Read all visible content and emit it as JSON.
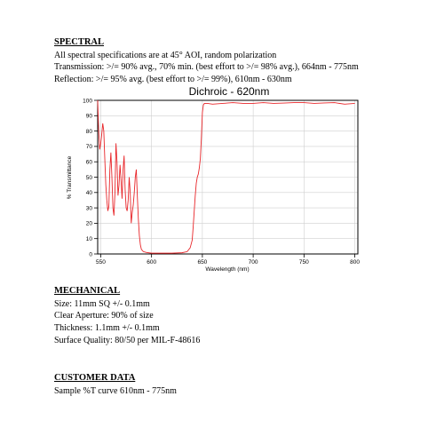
{
  "spectral": {
    "heading": "SPECTRAL",
    "lines": [
      "All spectral specifications are at 45° AOI, random polarization",
      "Transmission:  >/= 90% avg., 70% min. (best effort to >/= 98% avg.), 664nm - 775nm",
      "Reflection:  >/= 95% avg. (best effort to >/= 99%), 610nm - 630nm"
    ]
  },
  "chart_data": {
    "type": "line",
    "title": "Dichroic - 620nm",
    "xlabel": "Wavelength (nm)",
    "ylabel": "% Transmittance",
    "xlim": [
      547,
      803
    ],
    "ylim": [
      0,
      100
    ],
    "x_ticks": [
      550,
      600,
      650,
      700,
      750,
      800
    ],
    "y_ticks": [
      0,
      10,
      20,
      30,
      40,
      50,
      60,
      70,
      80,
      90,
      100
    ],
    "grid": true,
    "line_color": "#e8262a",
    "series": [
      {
        "x": [
          547,
          548,
          549,
          550,
          551,
          552,
          553,
          554,
          555,
          556,
          557,
          558,
          559,
          560,
          561,
          562,
          563,
          564,
          565,
          566,
          567,
          568,
          569,
          570,
          571,
          572,
          573,
          574,
          575,
          576,
          577,
          578,
          579,
          580,
          581,
          582,
          583,
          584,
          585,
          586,
          587,
          588,
          589,
          590,
          592,
          595,
          600,
          610,
          620,
          630,
          635,
          638,
          640,
          641,
          642,
          643,
          644,
          645,
          646,
          647,
          648,
          649,
          650,
          651,
          652,
          655,
          660,
          670,
          680,
          690,
          700,
          710,
          720,
          730,
          740,
          750,
          760,
          770,
          780,
          790,
          800
        ],
        "y": [
          100,
          80,
          68,
          72,
          78,
          85,
          80,
          62,
          45,
          35,
          28,
          31,
          55,
          66,
          50,
          30,
          25,
          40,
          72,
          60,
          38,
          45,
          58,
          48,
          36,
          55,
          64,
          42,
          30,
          28,
          35,
          50,
          40,
          20,
          27,
          32,
          40,
          50,
          55,
          38,
          23,
          12,
          6,
          3,
          1.5,
          1,
          0.5,
          0.5,
          0.5,
          0.8,
          1.5,
          4,
          9,
          18,
          28,
          38,
          46,
          50,
          52,
          56,
          62,
          75,
          92,
          97,
          98,
          98,
          97.5,
          98,
          98.5,
          98,
          98,
          98.5,
          98,
          98.2,
          98.5,
          98.5,
          98,
          98.3,
          98.5,
          97.5,
          98
        ]
      }
    ]
  },
  "mechanical": {
    "heading": "MECHANICAL",
    "lines": [
      "Size: 11mm SQ +/- 0.1mm",
      "Clear Aperture:  90% of size",
      "Thickness: 1.1mm +/- 0.1mm",
      "Surface Quality: 80/50 per MIL-F-48616"
    ]
  },
  "customer": {
    "heading": "CUSTOMER DATA",
    "lines": [
      "Sample %T curve 610nm - 775nm"
    ]
  }
}
